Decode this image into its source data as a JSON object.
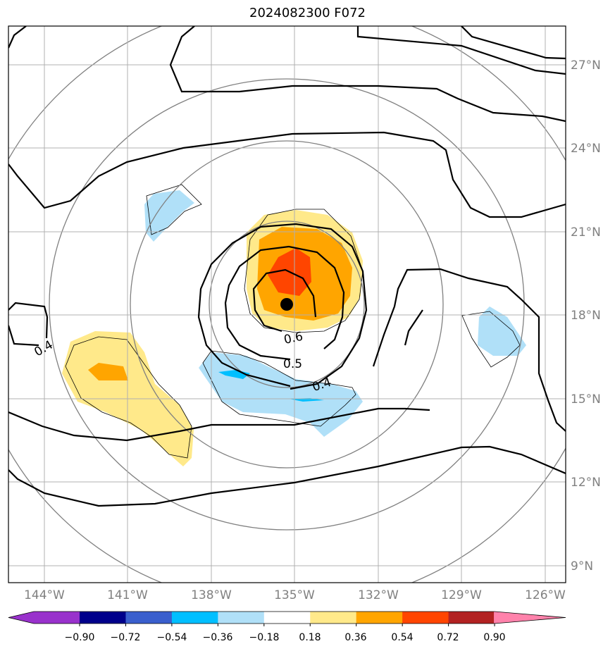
{
  "title": "2024082300 F072",
  "map": {
    "lon_labels": [
      "144°W",
      "141°W",
      "138°W",
      "135°W",
      "132°W",
      "129°W",
      "126°W"
    ],
    "lat_labels": [
      "27°N",
      "24°N",
      "21°N",
      "18°N",
      "15°N",
      "12°N",
      "9°N"
    ],
    "contour_labels": [
      "0.4",
      "0.6",
      "0.5",
      "0.4"
    ],
    "storm_center": {
      "lon": "135.2°W",
      "lat": "18.4°N"
    }
  },
  "colorbar": {
    "ticks": [
      "−0.90",
      "−0.72",
      "−0.54",
      "−0.36",
      "−0.18",
      "0.18",
      "0.36",
      "0.54",
      "0.72",
      "0.90"
    ],
    "colors": [
      "#9932cc",
      "#00008b",
      "#3a5fcd",
      "#00bfff",
      "#b0e0f8",
      "#ffffff",
      "#ffe98a",
      "#ffa500",
      "#ff4500",
      "#b22222",
      "#ff82ab"
    ]
  }
}
